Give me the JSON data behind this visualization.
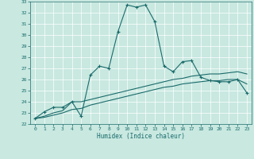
{
  "title": "",
  "xlabel": "Humidex (Indice chaleur)",
  "xlim": [
    -0.5,
    23.5
  ],
  "ylim": [
    22,
    33
  ],
  "yticks": [
    22,
    23,
    24,
    25,
    26,
    27,
    28,
    29,
    30,
    31,
    32,
    33
  ],
  "xticks": [
    0,
    1,
    2,
    3,
    4,
    5,
    6,
    7,
    8,
    9,
    10,
    11,
    12,
    13,
    14,
    15,
    16,
    17,
    18,
    19,
    20,
    21,
    22,
    23
  ],
  "bg_color": "#c8e8e0",
  "line_color": "#1a6b6b",
  "line1_x": [
    0,
    1,
    2,
    3,
    4,
    5,
    6,
    7,
    8,
    9,
    10,
    11,
    12,
    13,
    14,
    15,
    16,
    17,
    18,
    19,
    20,
    21,
    22,
    23
  ],
  "line1_y": [
    22.5,
    23.1,
    23.5,
    23.5,
    24.0,
    22.7,
    26.4,
    27.2,
    27.0,
    30.3,
    32.7,
    32.5,
    32.7,
    31.2,
    27.2,
    26.7,
    27.6,
    27.7,
    26.2,
    25.9,
    25.8,
    25.8,
    26.0,
    24.8
  ],
  "line2_x": [
    0,
    1,
    2,
    3,
    4,
    5,
    6,
    7,
    8,
    9,
    10,
    11,
    12,
    13,
    14,
    15,
    16,
    17,
    18,
    19,
    20,
    21,
    22,
    23
  ],
  "line2_y": [
    22.5,
    22.7,
    23.0,
    23.2,
    24.0,
    24.0,
    24.2,
    24.4,
    24.6,
    24.8,
    25.0,
    25.2,
    25.4,
    25.6,
    25.8,
    26.0,
    26.1,
    26.3,
    26.4,
    26.5,
    26.5,
    26.6,
    26.7,
    26.5
  ],
  "line3_x": [
    0,
    1,
    2,
    3,
    4,
    5,
    6,
    7,
    8,
    9,
    10,
    11,
    12,
    13,
    14,
    15,
    16,
    17,
    18,
    19,
    20,
    21,
    22,
    23
  ],
  "line3_y": [
    22.5,
    22.6,
    22.8,
    23.0,
    23.3,
    23.4,
    23.7,
    23.9,
    24.1,
    24.3,
    24.5,
    24.7,
    24.9,
    25.1,
    25.3,
    25.4,
    25.6,
    25.7,
    25.8,
    25.9,
    25.9,
    26.0,
    26.0,
    25.6
  ]
}
